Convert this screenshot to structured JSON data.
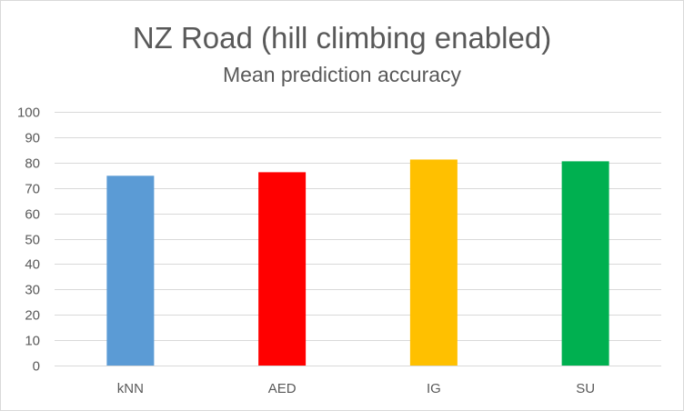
{
  "chart_data": {
    "type": "bar",
    "title": "NZ Road (hill climbing enabled)",
    "subtitle": "Mean prediction accuracy",
    "xlabel": "",
    "ylabel": "",
    "categories": [
      "kNN",
      "AED",
      "IG",
      "SU"
    ],
    "values": [
      74.8,
      76.2,
      81.2,
      80.5
    ],
    "colors": [
      "#5b9bd5",
      "#ff0000",
      "#ffc000",
      "#00b050"
    ],
    "ylim": [
      0,
      100
    ],
    "yticks": [
      0,
      10,
      20,
      30,
      40,
      50,
      60,
      70,
      80,
      90,
      100
    ],
    "grid": true,
    "legend": "none"
  }
}
